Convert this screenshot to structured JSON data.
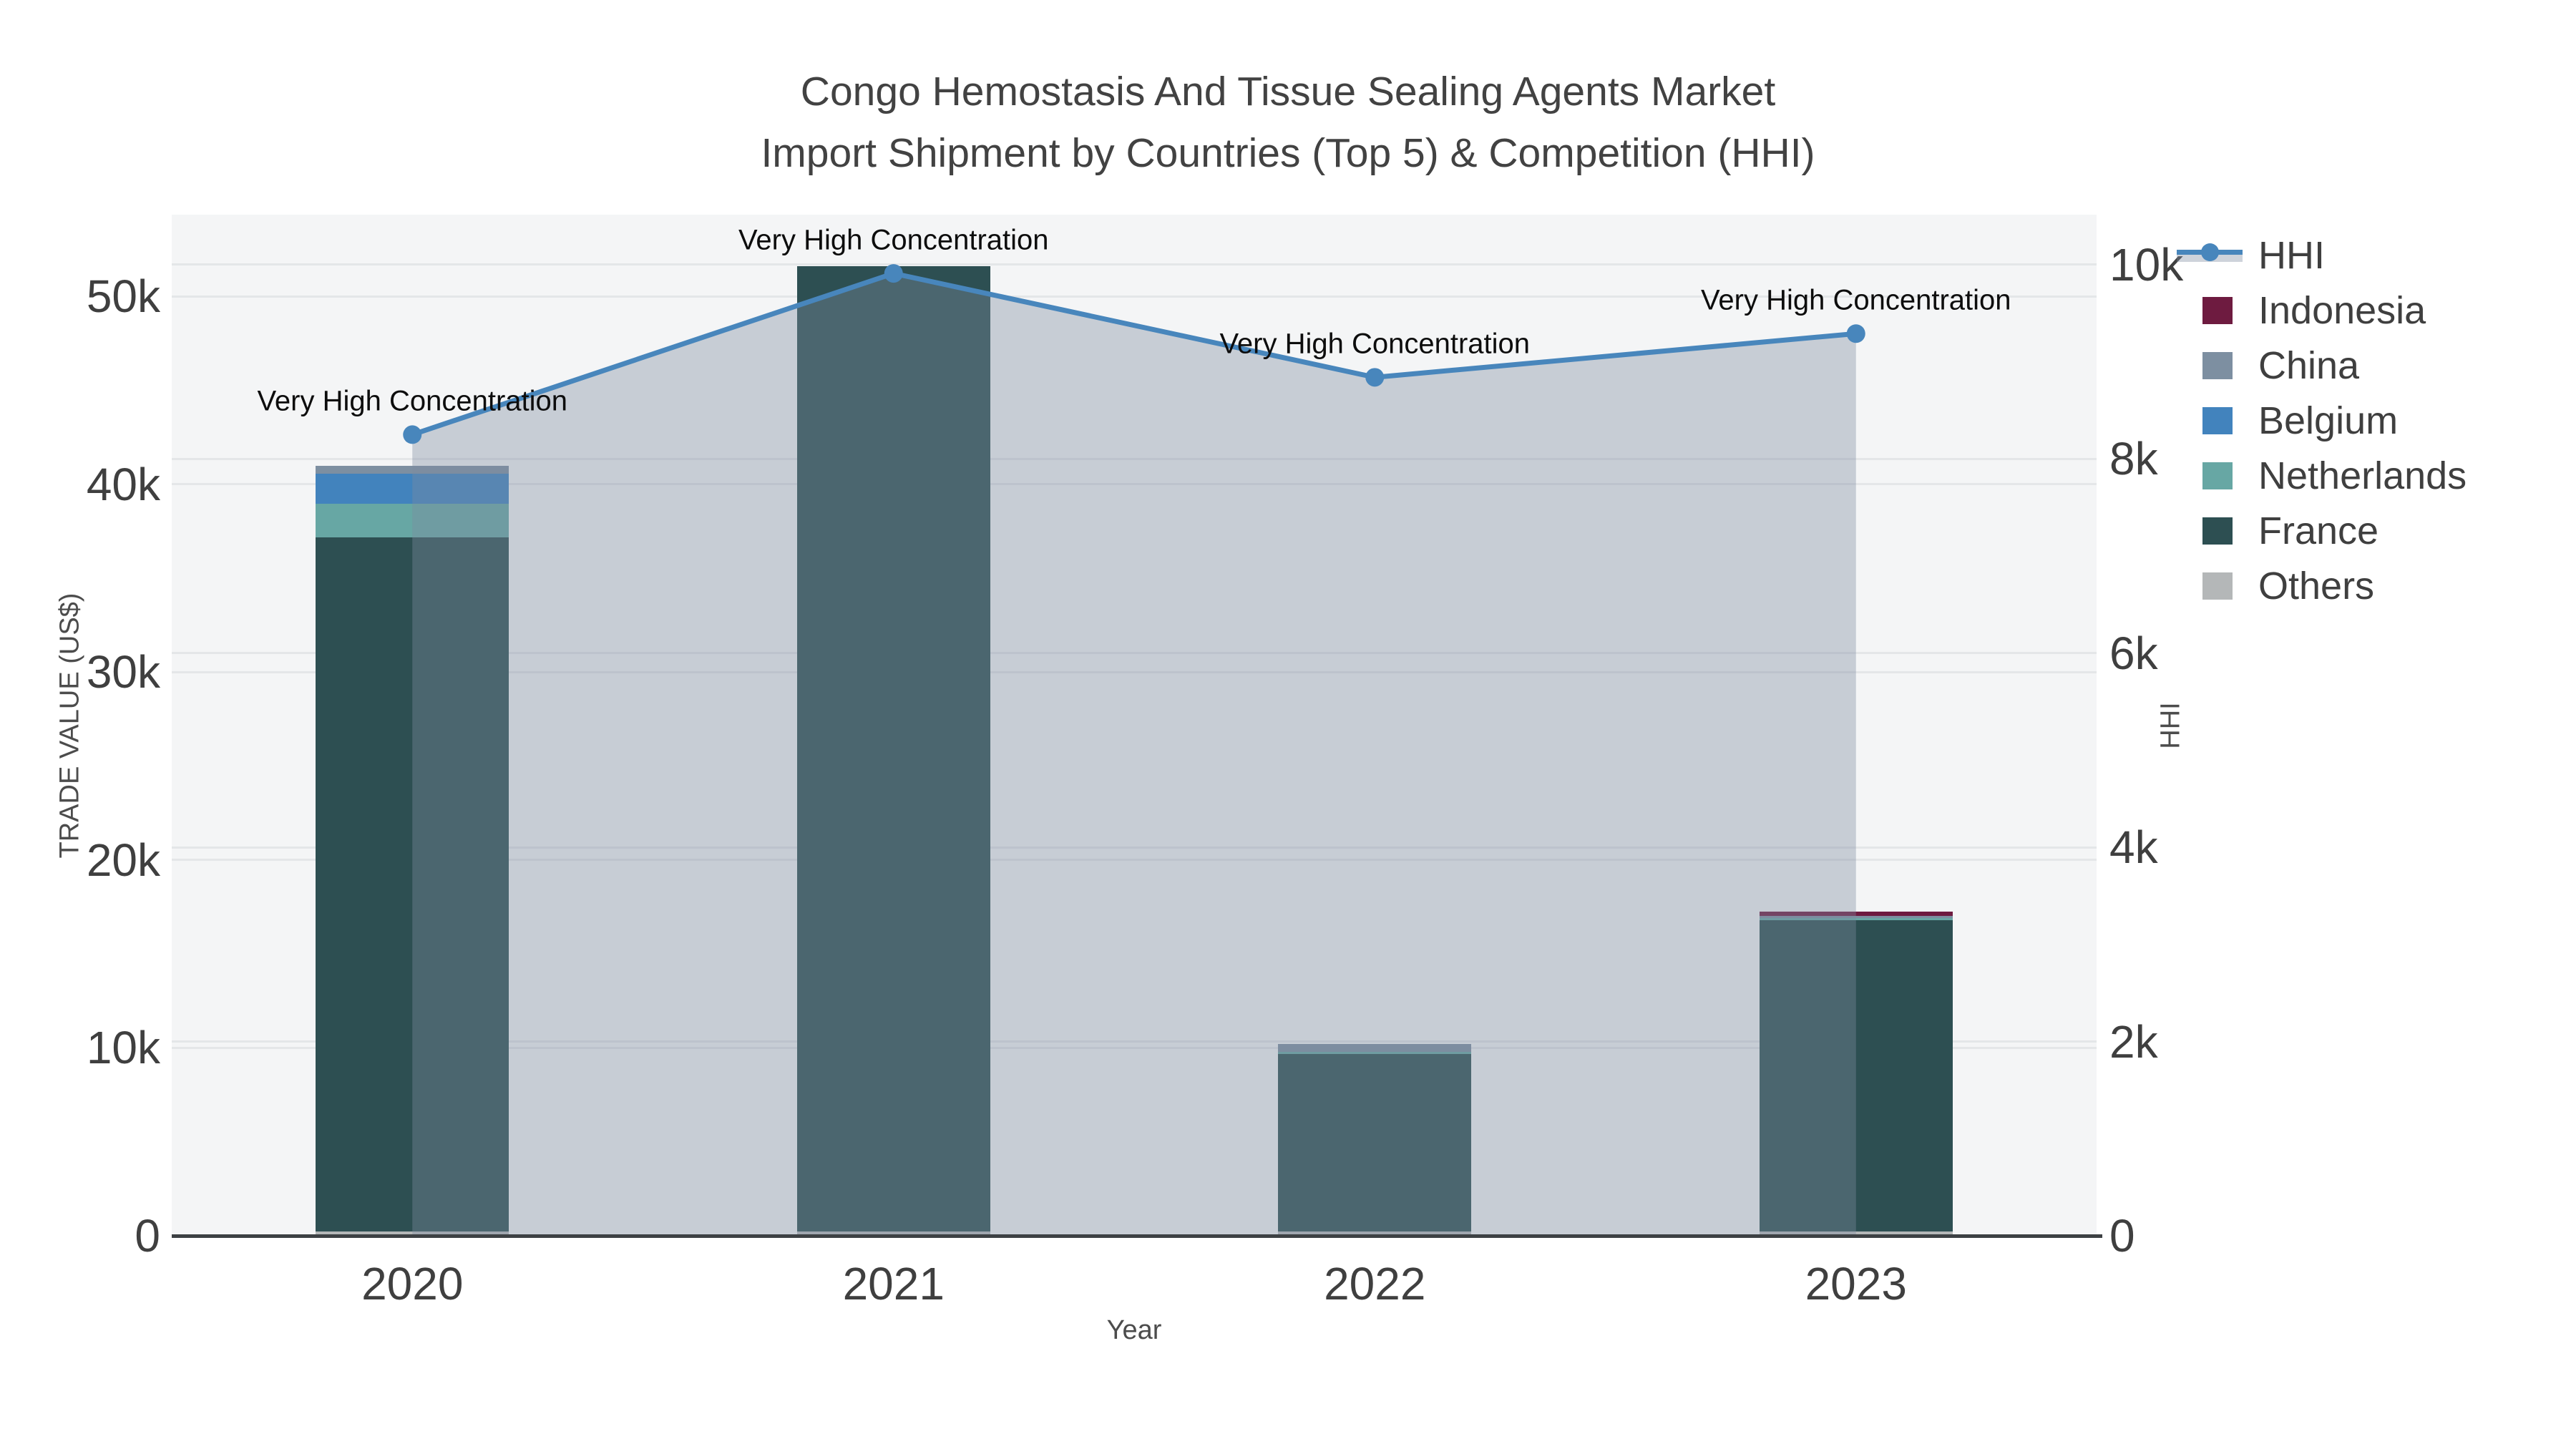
{
  "title": {
    "line1": "Congo Hemostasis And Tissue Sealing Agents Market",
    "line2": "Import Shipment by Countries (Top 5) & Competition (HHI)"
  },
  "chart_data": {
    "type": "bar",
    "subtype": "stacked-bars-with-line-area-overlay",
    "categories": [
      "2020",
      "2021",
      "2022",
      "2023"
    ],
    "bar_series": [
      {
        "name": "Indonesia",
        "color": "#6e1b40",
        "values": [
          0,
          0,
          0,
          230
        ]
      },
      {
        "name": "China",
        "color": "#7d8fa1",
        "values": [
          420,
          0,
          420,
          110
        ]
      },
      {
        "name": "Belgium",
        "color": "#4283bd",
        "values": [
          1600,
          0,
          0,
          0
        ]
      },
      {
        "name": "Netherlands",
        "color": "#67a7a4",
        "values": [
          1790,
          0,
          110,
          110
        ]
      },
      {
        "name": "France",
        "color": "#2d4f52",
        "values": [
          36950,
          51390,
          9450,
          16570
        ]
      },
      {
        "name": "Others",
        "color": "#b4b7b8",
        "values": [
          230,
          230,
          230,
          230
        ]
      }
    ],
    "stack_order_bottom_to_top": [
      "Others",
      "France",
      "Netherlands",
      "Belgium",
      "China",
      "Indonesia"
    ],
    "line_series": {
      "name": "HHI",
      "color": "#4886bc",
      "area_fill": "rgba(127,140,160,0.38)",
      "values": [
        8250,
        9910,
        8840,
        9290
      ]
    },
    "annotations": [
      {
        "category": "2020",
        "text": "Very High Concentration"
      },
      {
        "category": "2021",
        "text": "Very High Concentration"
      },
      {
        "category": "2022",
        "text": "Very High Concentration"
      },
      {
        "category": "2023",
        "text": "Very High Concentration"
      }
    ],
    "x_axis": {
      "title": "Year"
    },
    "y_left": {
      "title": "TRADE VALUE (US$)",
      "tick_labels": [
        "0",
        "10k",
        "20k",
        "30k",
        "40k",
        "50k"
      ],
      "tick_values": [
        0,
        10000,
        20000,
        30000,
        40000,
        50000
      ],
      "range": [
        0,
        54360
      ]
    },
    "y_right": {
      "title": "HHI",
      "tick_labels": [
        "0",
        "2k",
        "4k",
        "6k",
        "8k",
        "10k"
      ],
      "tick_values": [
        0,
        2000,
        4000,
        6000,
        8000,
        10000
      ],
      "range": [
        0,
        10515
      ]
    },
    "grid": true,
    "legend_position": "right"
  },
  "legend": {
    "items": [
      {
        "label": "HHI",
        "type": "line",
        "color": "#4886bc"
      },
      {
        "label": "Indonesia",
        "type": "square",
        "color": "#6e1b40"
      },
      {
        "label": "China",
        "type": "square",
        "color": "#7d8fa1"
      },
      {
        "label": "Belgium",
        "type": "square",
        "color": "#4283bd"
      },
      {
        "label": "Netherlands",
        "type": "square",
        "color": "#67a7a4"
      },
      {
        "label": "France",
        "type": "square",
        "color": "#2d4f52"
      },
      {
        "label": "Others",
        "type": "square",
        "color": "#b4b7b8"
      }
    ]
  },
  "style": {
    "plot_bg": "#f4f5f6",
    "axis_line_color": "#3d4144",
    "grid_color": "rgba(100,110,122,0.11)",
    "tick_color": "#3f3f3f",
    "title_color": "#424242"
  }
}
